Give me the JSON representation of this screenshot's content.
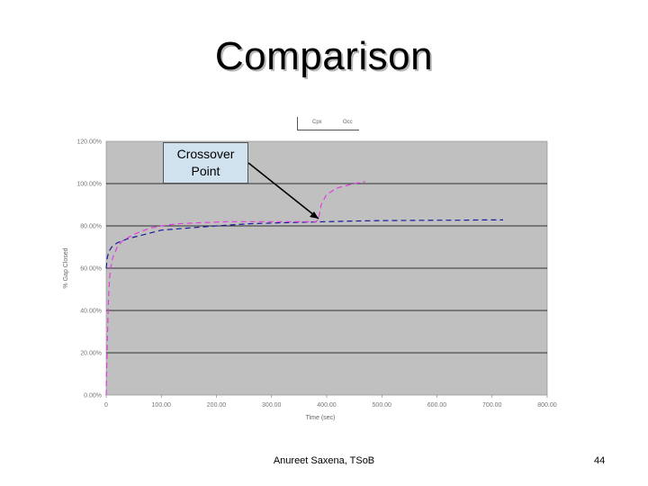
{
  "slide": {
    "title": "Comparison",
    "footer": "Anureet Saxena, TSoB",
    "page_number": "44"
  },
  "callout": {
    "line1": "Crossover",
    "line2": "Point"
  },
  "colors": {
    "plot_background": "#c0c0c0",
    "series_blue": "#1a1a9c",
    "series_magenta": "#e040e0",
    "gridline": "#000000",
    "callout_fill": "#cfe2ee"
  },
  "chart_data": {
    "type": "line",
    "title": "",
    "xlabel": "Time (sec)",
    "ylabel": "% Gap Closed",
    "ylim": [
      0,
      120
    ],
    "y_ticks": [
      "0.00%",
      "20.00%",
      "40.00%",
      "60.00%",
      "80.00%",
      "100.00%",
      "120.00%"
    ],
    "y_tick_values": [
      0,
      20,
      40,
      60,
      80,
      100,
      120
    ],
    "xlim": [
      0,
      800
    ],
    "x_ticks": [
      "0",
      "100.00",
      "200.00",
      "300.00",
      "400.00",
      "500.00",
      "600.00",
      "700.00",
      "800.00"
    ],
    "x_tick_values": [
      0,
      100,
      200,
      300,
      400,
      500,
      600,
      700,
      800
    ],
    "grid": true,
    "legend": {
      "placement": "top",
      "entries": [
        "Cpx",
        "Occ"
      ]
    },
    "series": [
      {
        "name": "Cpx",
        "color": "#1a1a9c",
        "style": "dashed",
        "x": [
          0,
          2,
          5,
          10,
          20,
          40,
          70,
          100,
          150,
          200,
          260,
          320,
          400,
          450,
          500,
          550,
          600,
          640,
          680,
          720
        ],
        "y": [
          60,
          65,
          68,
          70,
          72,
          74,
          76,
          78,
          79,
          80,
          81,
          81.5,
          82,
          82.3,
          82.5,
          82.6,
          82.7,
          82.7,
          82.8,
          82.8
        ]
      },
      {
        "name": "Occ",
        "color": "#e040e0",
        "style": "dashed",
        "x": [
          0,
          2,
          4,
          6,
          8,
          12,
          20,
          30,
          50,
          80,
          100,
          130,
          170,
          220,
          260,
          300,
          360,
          380,
          385,
          390,
          400,
          420,
          450,
          470
        ],
        "y": [
          0,
          25,
          45,
          55,
          60,
          65,
          70,
          73,
          76,
          79,
          80,
          81,
          81.5,
          82,
          82,
          82,
          82,
          82,
          83,
          90,
          95,
          98,
          100,
          101
        ]
      }
    ],
    "annotations": [
      {
        "text": "Crossover Point",
        "points_to": {
          "x": 385,
          "y": 82
        }
      }
    ]
  }
}
